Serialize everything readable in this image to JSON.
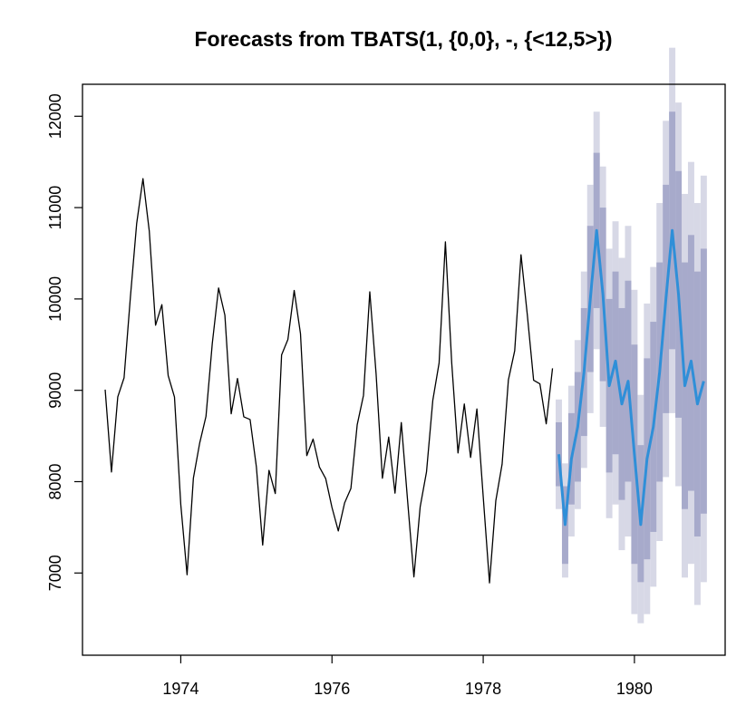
{
  "chart_data": {
    "type": "line",
    "title": "Forecasts from TBATS(1, {0,0}, -, {<12,5>})",
    "xlabel": "",
    "ylabel": "",
    "xlim": [
      1972.7,
      1981.2
    ],
    "ylim": [
      6100,
      12350
    ],
    "x_ticks": [
      1974,
      1976,
      1978,
      1980
    ],
    "x_tick_labels": [
      "1974",
      "1976",
      "1978",
      "1980"
    ],
    "y_ticks": [
      7000,
      8000,
      9000,
      10000,
      11000,
      12000
    ],
    "y_tick_labels": [
      "7000",
      "8000",
      "9000",
      "10000",
      "11000",
      "12000"
    ],
    "grid": false,
    "legend": "none",
    "colors": {
      "observed": "#000000",
      "forecast": "#2f8fd8",
      "interval_80": "#a7aacb",
      "interval_95": "#d7d8e6"
    },
    "series": [
      {
        "kind": "observed",
        "start": 1973.0,
        "frequency": 12,
        "values": [
          9007,
          8106,
          8928,
          9137,
          10017,
          10826,
          11317,
          10744,
          9713,
          9938,
          9161,
          8927,
          7750,
          6981,
          8038,
          8422,
          8714,
          9512,
          10120,
          9823,
          8743,
          9129,
          8710,
          8680,
          8162,
          7306,
          8124,
          7870,
          9387,
          9556,
          10093,
          9620,
          8285,
          8466,
          8160,
          8034,
          7717,
          7461,
          7767,
          7925,
          8623,
          8945,
          10078,
          9179,
          8037,
          8488,
          7874,
          8647,
          7792,
          6957,
          7726,
          8106,
          8890,
          9299,
          10625,
          9302,
          8314,
          8850,
          8265,
          8796,
          7836,
          6892,
          7791,
          8192,
          9115,
          9434,
          10484,
          9827,
          9110,
          9070,
          8633,
          9240
        ]
      },
      {
        "kind": "forecast",
        "start": 1979.0,
        "frequency": 12,
        "values": [
          8300,
          7530,
          8250,
          8600,
          9200,
          10000,
          10750,
          10050,
          9050,
          9320,
          8850,
          9100,
          8300,
          7530,
          8250,
          8600,
          9200,
          10000,
          10750,
          10050,
          9050,
          9320,
          8850,
          9100
        ],
        "lo80": [
          7950,
          7100,
          7750,
          8000,
          8500,
          9200,
          9900,
          9100,
          8100,
          8300,
          7800,
          8000,
          7100,
          6900,
          7150,
          7450,
          8000,
          8750,
          9450,
          8700,
          7700,
          7900,
          7400,
          7650
        ],
        "hi80": [
          8650,
          7950,
          8750,
          9200,
          9900,
          10800,
          11600,
          11000,
          10000,
          10300,
          9900,
          10200,
          9500,
          8400,
          9350,
          9750,
          10400,
          11250,
          12050,
          11400,
          10400,
          10700,
          10300,
          10550
        ],
        "lo95": [
          7700,
          6950,
          7400,
          7700,
          8150,
          8750,
          9450,
          8600,
          7600,
          7750,
          7250,
          7400,
          6550,
          6450,
          6550,
          6850,
          7350,
          8050,
          8750,
          7950,
          6950,
          7100,
          6650,
          6900
        ],
        "hi95": [
          8900,
          8200,
          9050,
          9550,
          10300,
          11250,
          12050,
          11450,
          10550,
          10850,
          10450,
          10800,
          10100,
          8950,
          9950,
          10350,
          11050,
          11950,
          12750,
          12150,
          11150,
          11500,
          11050,
          11350
        ]
      }
    ]
  }
}
